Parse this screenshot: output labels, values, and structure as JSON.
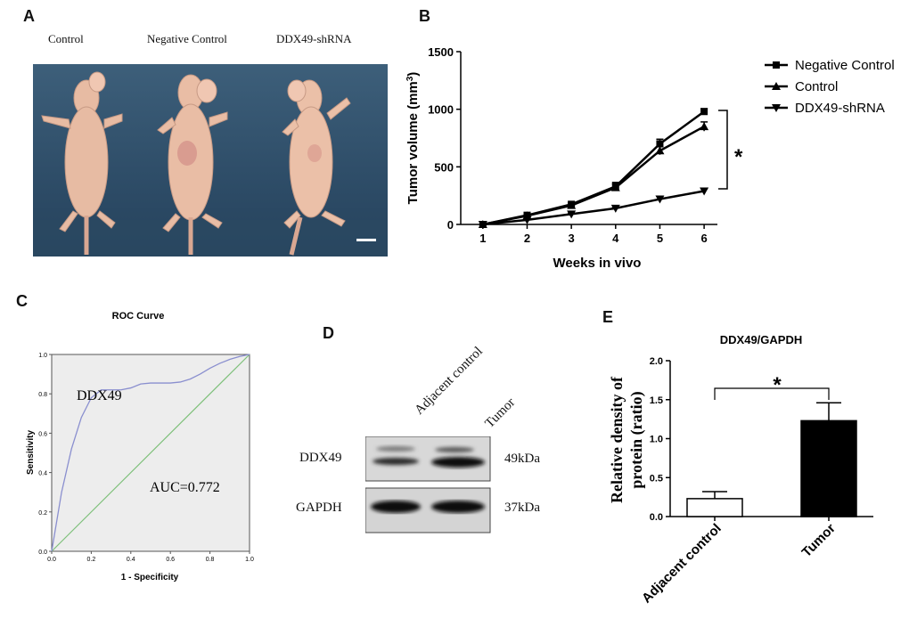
{
  "panels": {
    "a": "A",
    "b": "B",
    "c": "C",
    "d": "D",
    "e": "E"
  },
  "panel_a": {
    "labels": [
      "Control",
      "Negative Control",
      "DDX49-shRNA"
    ]
  },
  "panel_d": {
    "lanes": [
      "Adjacent control",
      "Tumor"
    ],
    "rows": [
      {
        "protein": "DDX49",
        "size": "49kDa"
      },
      {
        "protein": "GAPDH",
        "size": "37kDa"
      }
    ]
  },
  "colors": {
    "roc_curve": "#8a8fcf",
    "roc_diagonal": "#7ec07a",
    "roc_bg": "#ededed",
    "bar_tumor": "#000000",
    "bar_control": "#ffffff"
  },
  "chart_data": [
    {
      "id": "B",
      "type": "line",
      "title": "",
      "xlabel": "Weeks in vivo",
      "ylabel_main": "Tumor volume (mm",
      "ylabel_sup": "3",
      "ylabel_end": ")",
      "x": [
        1,
        2,
        3,
        4,
        5,
        6
      ],
      "xlim": [
        0.5,
        6.3
      ],
      "ylim": [
        0,
        1500
      ],
      "yticks": [
        0,
        500,
        1000,
        1500
      ],
      "series": [
        {
          "name": "Negative Control",
          "marker": "square",
          "values": [
            0,
            80,
            175,
            330,
            700,
            980
          ],
          "errors": [
            0,
            8,
            15,
            35,
            40,
            25
          ]
        },
        {
          "name": "Control",
          "marker": "triangle-up",
          "values": [
            0,
            75,
            165,
            320,
            640,
            850
          ],
          "errors": [
            0,
            8,
            12,
            30,
            35,
            40
          ]
        },
        {
          "name": "DDX49-shRNA",
          "marker": "triangle-down",
          "values": [
            0,
            40,
            90,
            140,
            220,
            290
          ],
          "errors": [
            0,
            5,
            8,
            10,
            25,
            20
          ]
        }
      ],
      "annotation": "*"
    },
    {
      "id": "C",
      "type": "line",
      "title": "ROC Curve",
      "xlabel": "1 - Specificity",
      "ylabel": "Sensitivity",
      "xlim": [
        0,
        1
      ],
      "ylim": [
        0,
        1
      ],
      "ticks": [
        "0.0",
        "0.2",
        "0.4",
        "0.6",
        "0.8",
        "1.0"
      ],
      "curve_label": "DDX49",
      "auc_label": "AUC=0.772",
      "series": [
        {
          "name": "DDX49",
          "x": [
            0,
            0.05,
            0.1,
            0.15,
            0.2,
            0.25,
            0.3,
            0.35,
            0.4,
            0.45,
            0.5,
            0.55,
            0.6,
            0.65,
            0.7,
            0.75,
            0.8,
            0.85,
            0.9,
            0.95,
            1.0
          ],
          "y": [
            0,
            0.3,
            0.52,
            0.68,
            0.78,
            0.82,
            0.82,
            0.82,
            0.83,
            0.85,
            0.855,
            0.855,
            0.855,
            0.86,
            0.875,
            0.9,
            0.93,
            0.955,
            0.975,
            0.99,
            1.0
          ]
        },
        {
          "name": "Reference",
          "x": [
            0,
            1
          ],
          "y": [
            0,
            1
          ]
        }
      ]
    },
    {
      "id": "E",
      "type": "bar",
      "title": "DDX49/GAPDH",
      "ylabel_line1": "Relative density of",
      "ylabel_line2": "protein (ratio)",
      "categories": [
        "Adjacent control",
        "Tumor"
      ],
      "values": [
        0.23,
        1.23
      ],
      "errors": [
        0.09,
        0.23
      ],
      "ylim": [
        0,
        2.0
      ],
      "yticks": [
        "0.0",
        "0.5",
        "1.0",
        "1.5",
        "2.0"
      ],
      "annotation": "*"
    }
  ]
}
